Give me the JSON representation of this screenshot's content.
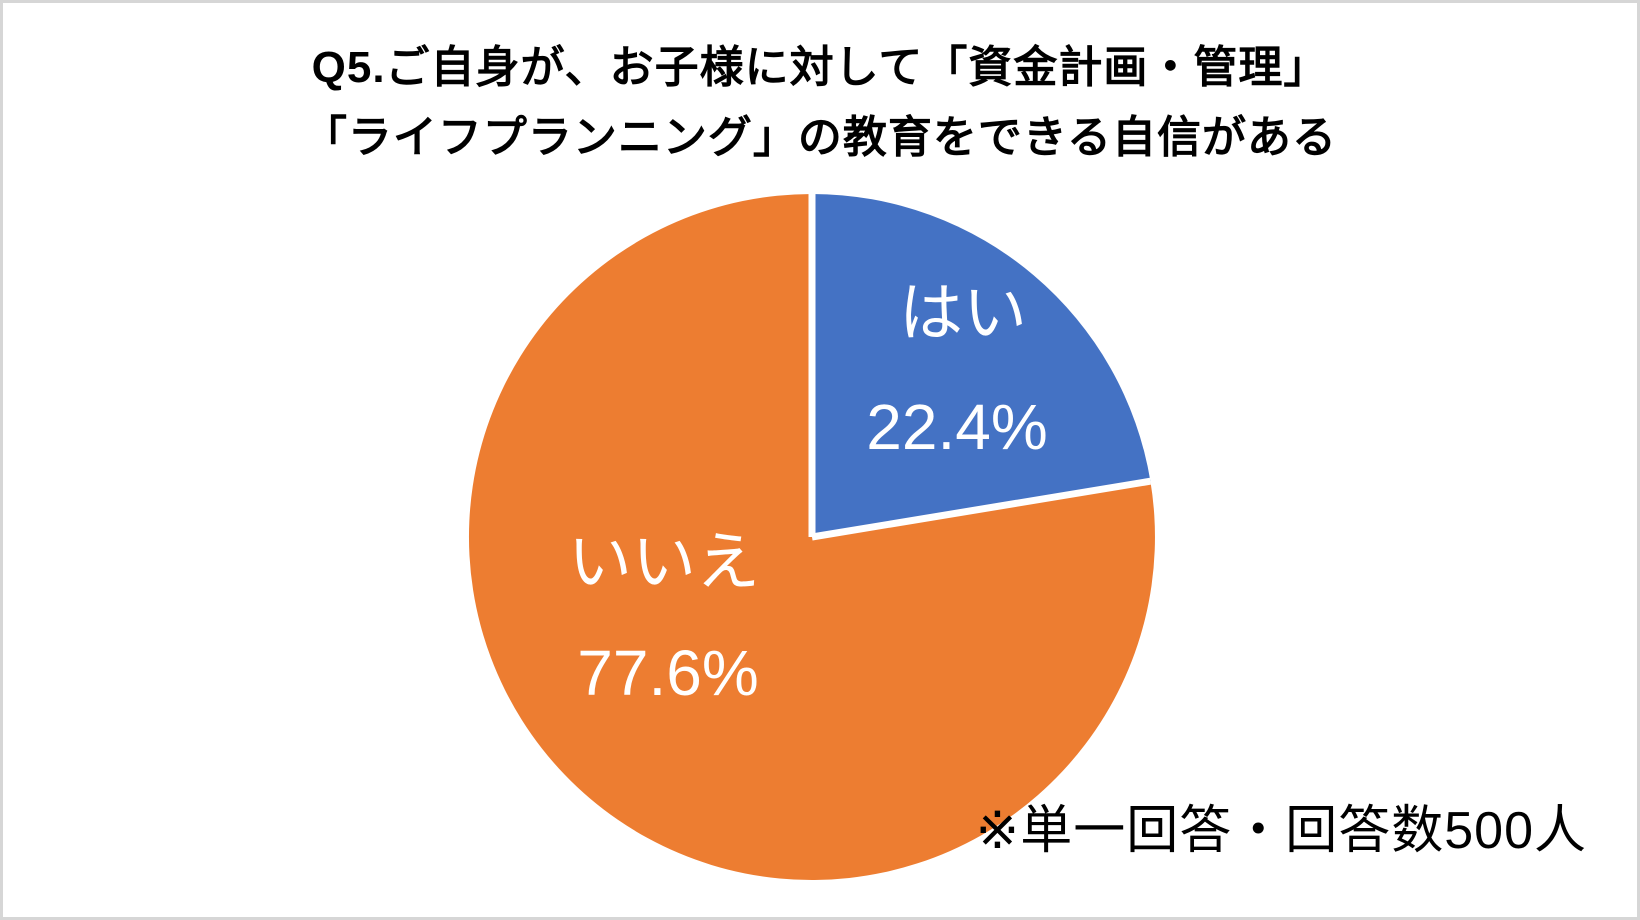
{
  "chart_title": {
    "line1": "Q5.ご自身が、お子様に対して「資金計画・管理」",
    "line2": "「ライフプランニング」の教育をできる自信がある"
  },
  "footnote": "※単一回答・回答数500人",
  "chart_data": {
    "type": "pie",
    "title": "Q5.ご自身が、お子様に対して「資金計画・管理」「ライフプランニング」の教育をできる自信がある",
    "categories": [
      "はい",
      "いいえ"
    ],
    "values": [
      22.4,
      77.6
    ],
    "unit": "%",
    "colors": [
      "#4472C4",
      "#ED7D31"
    ],
    "start_angle_deg": 0,
    "direction": "clockwise",
    "legend": "none",
    "labels": [
      {
        "name": "はい",
        "value_text": "22.4%"
      },
      {
        "name": "いいえ",
        "value_text": "77.6%"
      }
    ],
    "sample_note": "※単一回答・回答数500人",
    "sample_size": 500
  },
  "style": {
    "slice_border_color": "#ffffff",
    "frame_border_color": "#d6d6d6",
    "background": "#ffffff"
  }
}
